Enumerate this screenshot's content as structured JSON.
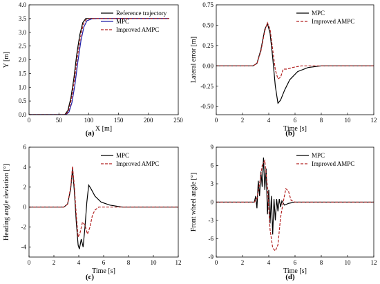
{
  "chart_data": [
    {
      "type": "line",
      "panel_label": "(a)",
      "xlabel": "X [m]",
      "ylabel": "Y [m]",
      "xlim": [
        0,
        250
      ],
      "ylim": [
        0,
        4.0
      ],
      "xticks": [
        0,
        50,
        100,
        150,
        200,
        250
      ],
      "yticks": [
        0.0,
        0.5,
        1.0,
        1.5,
        2.0,
        2.5,
        3.0,
        3.5,
        4.0
      ],
      "ytick_labels": [
        "0.0",
        "0.5",
        "1.0",
        "1.5",
        "2.0",
        "2.5",
        "3.0",
        "3.5",
        "4.0"
      ],
      "legend": "top-right",
      "series": [
        {
          "name": "Reference trajectory",
          "color": "#000000",
          "dash": "none",
          "x": [
            0,
            60,
            65,
            70,
            75,
            80,
            85,
            90,
            95,
            100,
            235
          ],
          "y": [
            0,
            0,
            0.15,
            0.6,
            1.3,
            2.2,
            2.9,
            3.35,
            3.5,
            3.5,
            3.5
          ]
        },
        {
          "name": "MPC",
          "color": "#1f1fa8",
          "dash": "none",
          "x": [
            0,
            62,
            67,
            72,
            77,
            82,
            87,
            92,
            97,
            105,
            115,
            235
          ],
          "y": [
            0,
            0,
            0.1,
            0.45,
            1.1,
            1.95,
            2.7,
            3.2,
            3.42,
            3.49,
            3.5,
            3.5
          ]
        },
        {
          "name": "Improved AMPC",
          "color": "#b22222",
          "dash": "4,2",
          "x": [
            0,
            61,
            66,
            71,
            76,
            81,
            86,
            91,
            96,
            102,
            110,
            235
          ],
          "y": [
            0,
            0,
            0.12,
            0.55,
            1.25,
            2.1,
            2.8,
            3.3,
            3.47,
            3.5,
            3.5,
            3.5
          ]
        }
      ]
    },
    {
      "type": "line",
      "panel_label": "(b)",
      "xlabel": "Time [s]",
      "ylabel": "Lateral error [m]",
      "xlim": [
        0,
        12
      ],
      "ylim": [
        -0.6,
        0.75
      ],
      "xticks": [
        0,
        2,
        4,
        6,
        8,
        10,
        12
      ],
      "yticks": [
        -0.5,
        -0.25,
        0.0,
        0.25,
        0.5,
        0.75
      ],
      "ytick_labels": [
        "-0.50",
        "-0.25",
        "0.00",
        "0.25",
        "0.50",
        "0.75"
      ],
      "legend": "top-right",
      "series": [
        {
          "name": "MPC",
          "color": "#000000",
          "dash": "none",
          "x": [
            0,
            2.8,
            3.1,
            3.4,
            3.7,
            3.9,
            4.1,
            4.3,
            4.5,
            4.7,
            4.9,
            5.2,
            5.6,
            6.2,
            7,
            8,
            12
          ],
          "y": [
            0,
            0,
            0.03,
            0.2,
            0.45,
            0.52,
            0.4,
            0.1,
            -0.25,
            -0.46,
            -0.42,
            -0.3,
            -0.17,
            -0.07,
            -0.02,
            0,
            0
          ]
        },
        {
          "name": "Improved AMPC",
          "color": "#b22222",
          "dash": "4,2",
          "x": [
            0,
            2.8,
            3.1,
            3.4,
            3.7,
            3.9,
            4.1,
            4.3,
            4.5,
            4.7,
            4.9,
            5.1,
            5.4,
            5.8,
            6.5,
            12
          ],
          "y": [
            0,
            0,
            0.03,
            0.18,
            0.43,
            0.53,
            0.45,
            0.2,
            -0.05,
            -0.16,
            -0.14,
            -0.04,
            -0.04,
            -0.02,
            0,
            0
          ]
        }
      ]
    },
    {
      "type": "line",
      "panel_label": "(c)",
      "xlabel": "Time [s]",
      "ylabel": "Heading angle deviation [°]",
      "xlim": [
        0,
        12
      ],
      "ylim": [
        -5,
        6
      ],
      "xticks": [
        0,
        2,
        4,
        6,
        8,
        10,
        12
      ],
      "yticks": [
        -4,
        -2,
        0,
        2,
        4,
        6
      ],
      "ytick_labels": [
        "-4",
        "-2",
        "0",
        "2",
        "4",
        "6"
      ],
      "legend": "top-right",
      "series": [
        {
          "name": "MPC",
          "color": "#000000",
          "dash": "none",
          "x": [
            0,
            2.8,
            3.1,
            3.35,
            3.5,
            3.65,
            3.8,
            3.95,
            4.05,
            4.2,
            4.35,
            4.5,
            4.65,
            4.8,
            5.0,
            5.3,
            5.8,
            6.5,
            7.5,
            12
          ],
          "y": [
            0,
            0,
            0.3,
            1.8,
            3.8,
            1.5,
            -1.5,
            -3.8,
            -4.2,
            -3.2,
            -4.0,
            -2.0,
            0.5,
            2.2,
            1.8,
            1.1,
            0.5,
            0.2,
            0,
            0
          ]
        },
        {
          "name": "Improved AMPC",
          "color": "#b22222",
          "dash": "4,2",
          "x": [
            0,
            2.8,
            3.1,
            3.35,
            3.5,
            3.65,
            3.8,
            3.95,
            4.1,
            4.3,
            4.5,
            4.7,
            4.9,
            5.1,
            5.3,
            5.6,
            6.2,
            12
          ],
          "y": [
            0,
            0,
            0.3,
            2.0,
            4.1,
            2.0,
            -0.8,
            -3.0,
            -2.6,
            -1.5,
            -1.8,
            -2.7,
            -2.0,
            -0.8,
            -0.3,
            0,
            0,
            0
          ]
        }
      ]
    },
    {
      "type": "line",
      "panel_label": "(d)",
      "xlabel": "Time [s]",
      "ylabel": "Front wheel angle [°]",
      "xlim": [
        0,
        12
      ],
      "ylim": [
        -9,
        9
      ],
      "xticks": [
        0,
        2,
        4,
        6,
        8,
        10,
        12
      ],
      "yticks": [
        -9,
        -6,
        -3,
        0,
        3,
        6,
        9
      ],
      "ytick_labels": [
        "-9",
        "-6",
        "-3",
        "0",
        "3",
        "6",
        "9"
      ],
      "legend": "top-right",
      "series": [
        {
          "name": "MPC",
          "color": "#000000",
          "dash": "none",
          "x": [
            0,
            2.9,
            3.0,
            3.1,
            3.2,
            3.3,
            3.4,
            3.5,
            3.6,
            3.7,
            3.8,
            3.9,
            4.0,
            4.1,
            4.2,
            4.3,
            4.4,
            4.5,
            4.6,
            4.7,
            4.8,
            4.9,
            5.0,
            5.2,
            5.5,
            6,
            12
          ],
          "y": [
            0,
            0,
            1.0,
            -1.0,
            3.5,
            1.0,
            5.0,
            2.5,
            7.3,
            2.0,
            5.5,
            -2.0,
            2.0,
            -3.5,
            1.0,
            -5.3,
            0.5,
            -3.0,
            0.5,
            -1.5,
            0.5,
            -0.8,
            0.2,
            -0.5,
            -0.2,
            0,
            0
          ]
        },
        {
          "name": "Improved AMPC",
          "color": "#b22222",
          "dash": "4,2",
          "x": [
            0,
            2.9,
            3.1,
            3.3,
            3.5,
            3.7,
            3.9,
            4.1,
            4.3,
            4.5,
            4.7,
            4.9,
            5.1,
            5.3,
            5.5,
            5.7,
            6.0,
            12
          ],
          "y": [
            0,
            0,
            0.6,
            3.0,
            6.0,
            6.8,
            2.5,
            -4.5,
            -7.5,
            -8.0,
            -7.0,
            -2.5,
            0,
            2.2,
            1.8,
            0.3,
            0,
            0
          ]
        }
      ]
    }
  ]
}
